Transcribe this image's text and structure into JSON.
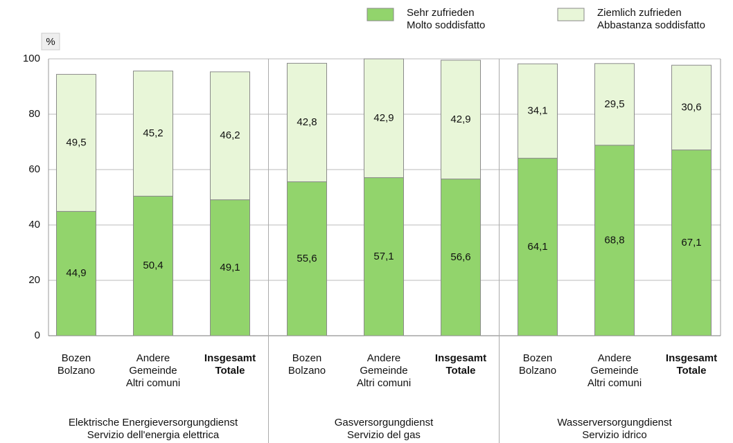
{
  "chart_data": {
    "type": "stacked_bar",
    "y_label": "%",
    "categories": [
      "Bozen\nBolzano",
      "Andere\nGemeinde\nAltri comuni",
      "Insgesamt\nTotale",
      "Bozen\nBolzano",
      "Andere\nGemeinde\nAltri comuni",
      "Insgesamt\nTotale",
      "Bozen\nBolzano",
      "Andere\nGemeinde\nAltri comuni",
      "Insgesamt\nTotale"
    ],
    "groups": [
      "Elektrische Energieversorgungdienst\nServizio dell'energia elettrica",
      "Gasversorgungdienst\nServizio del gas",
      "Wasserversorgungdienst\nServizio idrico"
    ],
    "series": [
      {
        "name": "Sehr zufrieden\nMolto soddisfatto",
        "color": "#92d46c",
        "values": [
          44.9,
          50.4,
          49.1,
          55.6,
          57.1,
          56.6,
          64.1,
          68.8,
          67.1
        ],
        "value_labels": [
          "44,9",
          "50,4",
          "49,1",
          "55,6",
          "57,1",
          "56,6",
          "64,1",
          "68,8",
          "67,1"
        ]
      },
      {
        "name": "Ziemlich zufrieden\nAbbastanza soddisfatto",
        "color": "#e8f6d8",
        "values": [
          49.5,
          45.2,
          46.2,
          42.8,
          42.9,
          42.9,
          34.1,
          29.5,
          30.6
        ],
        "value_labels": [
          "49,5",
          "45,2",
          "46,2",
          "42,8",
          "42,9",
          "42,9",
          "34,1",
          "29,5",
          "30,6"
        ]
      }
    ],
    "ylim": [
      0,
      100
    ],
    "yticks": [
      0,
      20,
      40,
      60,
      80,
      100
    ],
    "grid": true
  }
}
